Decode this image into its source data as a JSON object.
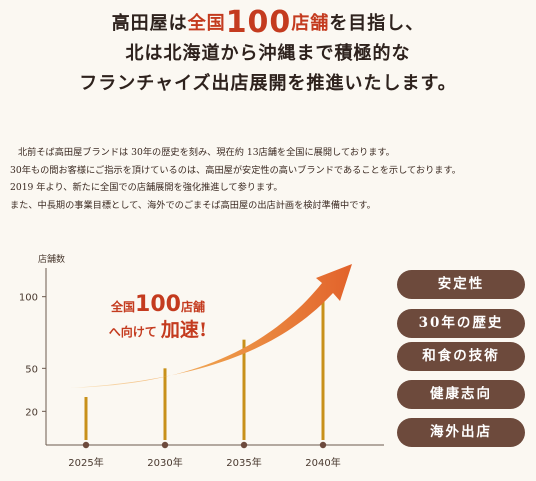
{
  "headline": {
    "line1_a": "高田屋は",
    "line1_b": "全国",
    "line1_num": "100",
    "line1_c": "店舗",
    "line1_d": "を目指し、",
    "line2": "北は北海道から沖縄まで積極的な",
    "line3": "フランチャイズ出店展開を推進いたします。"
  },
  "body": [
    "北前そば高田屋ブランドは 30年の歴史を刻み、現在約 13店舗を全国に展開しております。",
    "30年もの間お客様にご指示を頂けているのは、高田屋が安定性の高いブランドであることを示しております。",
    "2019 年より、新たに全国での店舗展開を強化推進して参ります。",
    "また、中長期の事業目標として、海外でのごまそば高田屋の出店計画を検討準備中です。"
  ],
  "callout": {
    "a": "全国",
    "num": "100",
    "b": "店舗",
    "c": "へ向けて",
    "d": "加速!"
  },
  "features": [
    "安定性",
    "30年の歴史",
    "和食の技術",
    "健康志向",
    "海外出店"
  ],
  "colors": {
    "accent": "#c43b1f",
    "pill": "#6d4a3c",
    "bar": "#c8911a",
    "axis": "#6b5a4e",
    "arrow_start": "#f5c06e",
    "arrow_end": "#e2622b"
  },
  "chart_data": {
    "type": "bar",
    "ylabel": "店舗数",
    "y_ticks": [
      "100",
      "50",
      "20"
    ],
    "categories": [
      "2025年",
      "2030年",
      "2035年",
      "2040年"
    ],
    "values": [
      30,
      50,
      70,
      100
    ],
    "ylim": [
      0,
      120
    ],
    "grid": false,
    "trend_arrow": true
  }
}
